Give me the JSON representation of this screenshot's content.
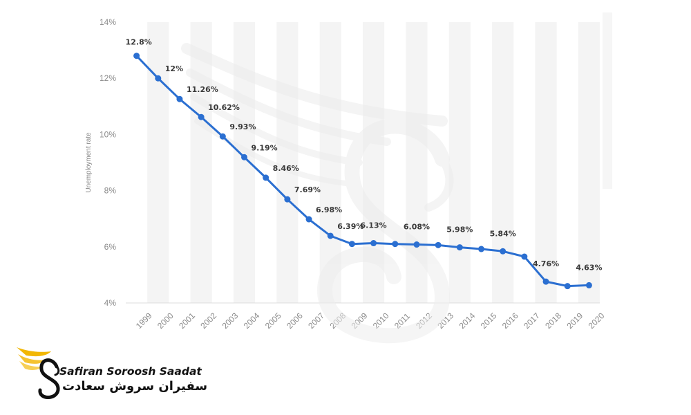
{
  "chart_data": {
    "type": "line",
    "ylabel": "Unemployment rate",
    "xlabel": "",
    "ylim": [
      4,
      14
    ],
    "y_ticks": [
      "4%",
      "6%",
      "8%",
      "10%",
      "12%",
      "14%"
    ],
    "y_tick_values": [
      4,
      6,
      8,
      10,
      12,
      14
    ],
    "grid": "vertical alternating bands",
    "x": [
      "1999",
      "2000",
      "2001",
      "2002",
      "2003",
      "2004",
      "2005",
      "2006",
      "2007",
      "2008",
      "2009",
      "2010",
      "2011",
      "2012",
      "2013",
      "2014",
      "2015",
      "2016",
      "2017",
      "2018",
      "2019",
      "2020"
    ],
    "values": [
      12.8,
      12,
      11.26,
      10.62,
      9.93,
      9.19,
      8.46,
      7.69,
      6.98,
      6.39,
      6.1,
      6.13,
      6.1,
      6.08,
      6.06,
      5.98,
      5.92,
      5.84,
      5.65,
      4.76,
      4.6,
      4.63
    ],
    "data_labels": [
      "12.8%",
      "12%",
      "11.26%",
      "10.62%",
      "9.93%",
      "9.19%",
      "8.46%",
      "7.69%",
      "6.98%",
      "6.39%",
      "",
      "6.13%",
      "",
      "6.08%",
      "",
      "5.98%",
      "",
      "5.84%",
      "",
      "4.76%",
      "",
      "4.63%"
    ],
    "line_color": "#2b6fd1"
  },
  "watermark": {
    "brand_en": "Safiran Soroosh Saadat",
    "brand_fa": "سفیران سروش سعادت",
    "icon": "swan-wing-logo-icon",
    "accent_color": "#f2b705"
  }
}
